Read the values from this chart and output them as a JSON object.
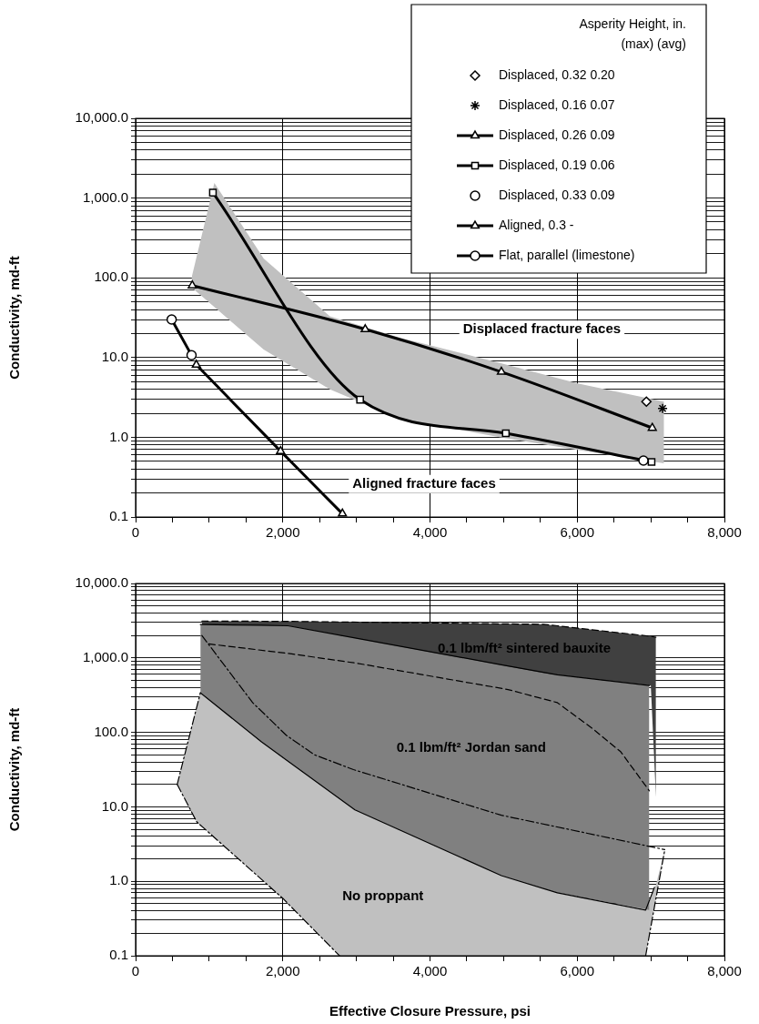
{
  "chart_data": [
    {
      "type": "line",
      "ylabel": "Conductivity, md-ft",
      "legend_title": "Asperity Height, in. (max) (avg)",
      "legend": "top right",
      "log": "y",
      "grid": true,
      "xlim": [
        0,
        8000
      ],
      "xticks": [
        0,
        {
          "value": 500,
          "label": null
        },
        {
          "value": 1000,
          "label": null
        },
        {
          "value": 1500,
          "label": null
        },
        {
          "value": 2000,
          "label": "2,000"
        },
        {
          "value": 2500,
          "label": null
        },
        {
          "value": 3000,
          "label": null
        },
        {
          "value": 3500,
          "label": null
        },
        {
          "value": 4000,
          "label": "4,000"
        },
        {
          "value": 4500,
          "label": null
        },
        {
          "value": 5000,
          "label": null
        },
        {
          "value": 5500,
          "label": null
        },
        {
          "value": 6000,
          "label": "6,000"
        },
        {
          "value": 6500,
          "label": null
        },
        {
          "value": 7000,
          "label": null
        },
        {
          "value": 7500,
          "label": null
        },
        {
          "value": 8000,
          "label": "8,000"
        }
      ],
      "ylim": [
        0.1,
        10000
      ],
      "yticks": [
        {
          "value": 0.1,
          "label": "0.1"
        },
        {
          "value": 0.2,
          "label": null
        },
        {
          "value": 0.3,
          "label": null
        },
        {
          "value": 0.4,
          "label": null
        },
        {
          "value": 0.5,
          "label": null
        },
        {
          "value": 0.6,
          "label": null
        },
        {
          "value": 0.7,
          "label": null
        },
        {
          "value": 0.8,
          "label": null
        },
        {
          "value": 0.9,
          "label": null
        },
        {
          "value": 1,
          "label": "1.0"
        },
        {
          "value": 2,
          "label": null
        },
        {
          "value": 3,
          "label": null
        },
        {
          "value": 4,
          "label": null
        },
        {
          "value": 5,
          "label": null
        },
        {
          "value": 6,
          "label": null
        },
        {
          "value": 7,
          "label": null
        },
        {
          "value": 8,
          "label": null
        },
        {
          "value": 9,
          "label": null
        },
        {
          "value": 10,
          "label": "10.0"
        },
        {
          "value": 20,
          "label": null
        },
        {
          "value": 30,
          "label": null
        },
        {
          "value": 40,
          "label": null
        },
        {
          "value": 50,
          "label": null
        },
        {
          "value": 60,
          "label": null
        },
        {
          "value": 70,
          "label": null
        },
        {
          "value": 80,
          "label": null
        },
        {
          "value": 90,
          "label": null
        },
        {
          "value": 100,
          "label": "100.0"
        },
        {
          "value": 200,
          "label": null
        },
        {
          "value": 300,
          "label": null
        },
        {
          "value": 400,
          "label": null
        },
        {
          "value": 500,
          "label": null
        },
        {
          "value": 600,
          "label": null
        },
        {
          "value": 700,
          "label": null
        },
        {
          "value": 800,
          "label": null
        },
        {
          "value": 900,
          "label": null
        },
        {
          "value": 1000,
          "label": "1,000.0"
        },
        {
          "value": 2000,
          "label": null
        },
        {
          "value": 3000,
          "label": null
        },
        {
          "value": 4000,
          "label": null
        },
        {
          "value": 5000,
          "label": null
        },
        {
          "value": 6000,
          "label": null
        },
        {
          "value": 7000,
          "label": null
        },
        {
          "value": 8000,
          "label": null
        },
        {
          "value": 9000,
          "label": null
        },
        {
          "value": 10000,
          "label": "10,000.0"
        }
      ],
      "annotations": [
        "Displaced fracture faces",
        "Aligned fracture faces"
      ],
      "series": [
        {
          "type": "area",
          "color": "#c0c0c0",
          "values": [
            null,
            null,
            null,
            null,
            null,
            null,
            null,
            null
          ],
          "x": [
            760,
            1070,
            1740,
            2640,
            3590,
            4960,
            6020,
            7180
          ],
          "lower": [
            76,
            43,
            12.6,
            4,
            1.7,
            1,
            0.69,
            0.47
          ],
          "upper": [
            100,
            1550,
            175,
            33,
            17.7,
            8.5,
            4.7,
            2.8
          ]
        },
        {
          "name": "Displaced, 0.32 0.20",
          "type": "scatter",
          "marker": "diamond",
          "color": "#000000",
          "x": [
            6940
          ],
          "values": [
            2.8
          ]
        },
        {
          "name": "Displaced, 0.16 0.07",
          "type": "scatter",
          "marker": "cross",
          "color": "#000000",
          "x": [
            7160
          ],
          "values": [
            2.3
          ]
        },
        {
          "name": "Displaced, 0.26 0.09",
          "marker": "triangle",
          "color": "#000000",
          "x": [
            770,
            3120,
            4970,
            7020
          ],
          "values": [
            80,
            22.6,
            6.6,
            1.31
          ]
        },
        {
          "name": "Displaced, 0.19 0.06",
          "marker": "square",
          "color": "#000000",
          "x": [
            1050,
            3050,
            5030,
            7010
          ],
          "values": [
            1170,
            2.96,
            1.12,
            0.49
          ]
        },
        {
          "name": "Displaced, 0.33 0.09",
          "type": "scatter",
          "marker": "circle",
          "color": "#000000",
          "x": [
            6900
          ],
          "values": [
            0.51
          ]
        },
        {
          "name": "Aligned, 0.3 -",
          "marker": "triangle",
          "color": "#000000",
          "x": [
            825,
            1970,
            2810
          ],
          "values": [
            8.1,
            0.67,
            0.11
          ]
        },
        {
          "name": "Flat, parallel (limestone)",
          "marker": "circle",
          "color": "#000000",
          "x": [
            490,
            760
          ],
          "values": [
            30,
            10.7
          ]
        }
      ]
    },
    {
      "type": "area",
      "xlabel": "Effective Closure Pressure, psi",
      "ylabel": "Conductivity, md-ft",
      "log": "y",
      "grid": true,
      "xlim": [
        0,
        8000
      ],
      "xticks": [
        0,
        {
          "value": 500,
          "label": null
        },
        {
          "value": 1000,
          "label": null
        },
        {
          "value": 1500,
          "label": null
        },
        {
          "value": 2000,
          "label": "2,000"
        },
        {
          "value": 2500,
          "label": null
        },
        {
          "value": 3000,
          "label": null
        },
        {
          "value": 3500,
          "label": null
        },
        {
          "value": 4000,
          "label": "4,000"
        },
        {
          "value": 4500,
          "label": null
        },
        {
          "value": 5000,
          "label": null
        },
        {
          "value": 5500,
          "label": null
        },
        {
          "value": 6000,
          "label": "6,000"
        },
        {
          "value": 6500,
          "label": null
        },
        {
          "value": 7000,
          "label": null
        },
        {
          "value": 7500,
          "label": null
        },
        {
          "value": 8000,
          "label": "8,000"
        }
      ],
      "ylim": [
        0.1,
        10000
      ],
      "yticks": [
        {
          "value": 0.1,
          "label": "0.1"
        },
        {
          "value": 0.2,
          "label": null
        },
        {
          "value": 0.3,
          "label": null
        },
        {
          "value": 0.4,
          "label": null
        },
        {
          "value": 0.5,
          "label": null
        },
        {
          "value": 0.6,
          "label": null
        },
        {
          "value": 0.7,
          "label": null
        },
        {
          "value": 0.8,
          "label": null
        },
        {
          "value": 0.9,
          "label": null
        },
        {
          "value": 1,
          "label": "1.0"
        },
        {
          "value": 2,
          "label": null
        },
        {
          "value": 3,
          "label": null
        },
        {
          "value": 4,
          "label": null
        },
        {
          "value": 5,
          "label": null
        },
        {
          "value": 6,
          "label": null
        },
        {
          "value": 7,
          "label": null
        },
        {
          "value": 8,
          "label": null
        },
        {
          "value": 9,
          "label": null
        },
        {
          "value": 10,
          "label": "10.0"
        },
        {
          "value": 20,
          "label": null
        },
        {
          "value": 30,
          "label": null
        },
        {
          "value": 40,
          "label": null
        },
        {
          "value": 50,
          "label": null
        },
        {
          "value": 60,
          "label": null
        },
        {
          "value": 70,
          "label": null
        },
        {
          "value": 80,
          "label": null
        },
        {
          "value": 90,
          "label": null
        },
        {
          "value": 100,
          "label": "100.0"
        },
        {
          "value": 200,
          "label": null
        },
        {
          "value": 300,
          "label": null
        },
        {
          "value": 400,
          "label": null
        },
        {
          "value": 500,
          "label": null
        },
        {
          "value": 600,
          "label": null
        },
        {
          "value": 700,
          "label": null
        },
        {
          "value": 800,
          "label": null
        },
        {
          "value": 900,
          "label": null
        },
        {
          "value": 1000,
          "label": "1,000.0"
        },
        {
          "value": 2000,
          "label": null
        },
        {
          "value": 3000,
          "label": null
        },
        {
          "value": 4000,
          "label": null
        },
        {
          "value": 5000,
          "label": null
        },
        {
          "value": 6000,
          "label": null
        },
        {
          "value": 7000,
          "label": null
        },
        {
          "value": 8000,
          "label": null
        },
        {
          "value": 9000,
          "label": null
        },
        {
          "value": 10000,
          "label": "10,000.0"
        }
      ],
      "annotations": [
        "0.1 lbm/ft² sintered bauxite",
        "0.1 lbm/ft² Jordan sand",
        "No proppant"
      ],
      "series": [
        {
          "color": "#c0c0c0",
          "values": [
            null,
            null,
            null,
            null,
            null,
            null,
            null,
            null,
            null,
            null,
            null,
            null
          ],
          "x": [
            565,
            830,
            880,
            1710,
            2000,
            2770,
            2980,
            4970,
            5780,
            6930,
            7070,
            7190
          ],
          "lower": [
            20,
            6.3,
            5.7,
            1.06,
            0.59,
            0.1,
            0.1,
            0.1,
            0.1,
            0.1,
            0.59,
            2.66
          ],
          "upper": [
            20,
            225,
            340,
            74.6,
            46,
            12.9,
            9.1,
            1.19,
            0.68,
            0.41,
            0.9,
            2.66
          ]
        },
        {
          "color": "#808080",
          "values": [
            null,
            null,
            null,
            null,
            null,
            null,
            null
          ],
          "x": [
            880,
            1710,
            2070,
            2980,
            4970,
            5730,
            6980
          ],
          "lower": [
            340,
            74.6,
            41,
            9.1,
            1.19,
            0.7,
            0.41
          ],
          "upper": [
            2800,
            2750,
            2700,
            1850,
            810,
            592,
            425
          ]
        },
        {
          "color": "#404040",
          "values": [
            null,
            null,
            null,
            null,
            null,
            null
          ],
          "x": [
            900,
            2070,
            5540,
            5730,
            7000,
            7070
          ],
          "lower": [
            2800,
            2700,
            630,
            592,
            425,
            13.4
          ],
          "upper": [
            3130,
            3100,
            2830,
            2700,
            1950,
            1890
          ]
        },
        {
          "type": "line",
          "color": "#000000",
          "line_style": "dotted",
          "x": [
            565,
            880
          ],
          "values": [
            20,
            340
          ]
        },
        {
          "type": "line",
          "color": "#000000",
          "line_style": "dotted",
          "x": [
            565,
            830,
            2000,
            2770,
            4850,
            6930,
            7070,
            7190
          ],
          "values": [
            20,
            6.3,
            0.59,
            0.1,
            null,
            0.1,
            0.59,
            2.66
          ]
        },
        {
          "type": "line",
          "color": "#000000",
          "line_style": "solid",
          "x": [
            880,
            1710,
            2070,
            2980,
            4970,
            5730,
            6980
          ],
          "values": [
            2800,
            2750,
            2700,
            1850,
            810,
            592,
            425
          ]
        },
        {
          "type": "line",
          "color": "#000000",
          "line_style": "solid",
          "x": [
            880,
            1710,
            2070,
            2980,
            4970,
            5730,
            6930,
            7050
          ],
          "values": [
            340,
            74.6,
            41,
            9.1,
            1.19,
            0.7,
            0.41,
            0.83
          ]
        },
        {
          "type": "line",
          "color": "#000000",
          "line_style": "dashed",
          "x": [
            900,
            2070,
            5540,
            5730,
            7000,
            7070
          ],
          "values": [
            3130,
            3100,
            2830,
            2700,
            1950,
            1890
          ]
        },
        {
          "type": "line",
          "color": "#000000",
          "line_style": "dashed",
          "x": [
            995,
            2100,
            3000,
            5060,
            5730,
            6210,
            6590,
            6980
          ],
          "values": [
            1540,
            1140,
            850,
            376,
            251,
            112,
            55,
            16.4
          ]
        },
        {
          "type": "line",
          "color": "#000000",
          "line_style": "dotted",
          "x": [
            900,
            1590,
            2050,
            2430,
            2960,
            4970,
            5920,
            7190
          ],
          "values": [
            2000,
            251,
            91,
            50,
            31.6,
            7.7,
            4.9,
            2.66
          ]
        }
      ]
    }
  ]
}
